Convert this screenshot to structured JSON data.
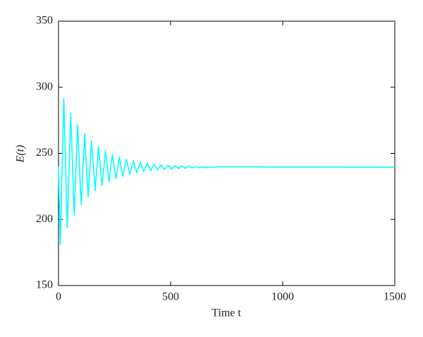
{
  "chart_data": {
    "type": "line",
    "x_label": "Time t",
    "y_label": "E(t)",
    "xlim": [
      0,
      1500
    ],
    "xticks": [
      0,
      500,
      1000,
      1500
    ],
    "ylim": [
      150,
      350
    ],
    "yticks": [
      150,
      200,
      250,
      300,
      350
    ],
    "series": [
      {
        "color": "#00ffff",
        "x": [
          0,
          8,
          23.5,
          39,
          54.5,
          70,
          85.5,
          101,
          116.5,
          132,
          147.5,
          163,
          178.5,
          194,
          209.5,
          225,
          240.5,
          256,
          271.5,
          287,
          302.5,
          318,
          333.5,
          349,
          364.5,
          380,
          395.5,
          411,
          426.5,
          442,
          457.5,
          473,
          488.5,
          504,
          519.5,
          535,
          550.5,
          566,
          581.5,
          597,
          612.5,
          628,
          643.5,
          659,
          674.5,
          690,
          705.5,
          1500
        ],
        "values": [
          240,
          181.2,
          291.3,
          193.6,
          280.3,
          203.3,
          271.6,
          211.0,
          264.8,
          217.0,
          259.4,
          221.8,
          255.2,
          225.6,
          251.9,
          228.5,
          249.2,
          230.8,
          247.2,
          232.7,
          245.6,
          234.1,
          244.3,
          235.3,
          243.3,
          236.2,
          242.5,
          236.9,
          241.8,
          237.4,
          241.3,
          237.9,
          240.9,
          238.2,
          240.6,
          238.5,
          240.4,
          238.7,
          240.2,
          238.9,
          240.0,
          239.0,
          239.9,
          239.1,
          239.8,
          239.2,
          239.8,
          239.5
        ]
      }
    ]
  }
}
